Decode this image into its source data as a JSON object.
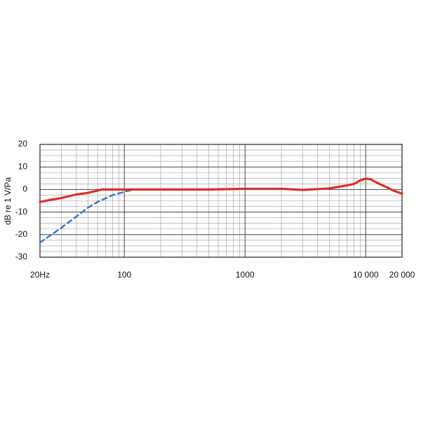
{
  "chart_data": {
    "type": "line",
    "log_x": true,
    "y_label": "dB re 1 V/Pa",
    "xlim": [
      20,
      20000
    ],
    "xticks": [
      {
        "value": 20,
        "label": "20Hz"
      },
      100,
      1000,
      {
        "value": 10000,
        "label": "10 000"
      },
      {
        "value": 20000,
        "label": "20 000"
      }
    ],
    "xminorticks": [
      30,
      40,
      50,
      60,
      70,
      80,
      90,
      200,
      300,
      400,
      500,
      600,
      700,
      800,
      900,
      2000,
      3000,
      4000,
      5000,
      6000,
      7000,
      8000,
      9000
    ],
    "ylim": [
      -30,
      20
    ],
    "yticks": [
      20,
      10,
      0,
      -10,
      -20,
      -30
    ],
    "yminorticks": [
      17.5,
      15,
      12.5,
      7.5,
      5,
      2.5,
      -2.5,
      -5,
      -7.5,
      -12.5,
      -15,
      -17.5,
      -22.5,
      -25,
      -27.5
    ],
    "grid": true,
    "series": [
      {
        "color": "#d9302a",
        "dash": false,
        "x": [
          20,
          25,
          30,
          40,
          50,
          60,
          65,
          80,
          100,
          200,
          300,
          500,
          1000,
          2000,
          3000,
          5000,
          7000,
          8000,
          9000,
          10000,
          11000,
          13000,
          15000,
          17000,
          20000
        ],
        "values": [
          -5.5,
          -4.5,
          -3.8,
          -2.2,
          -1.5,
          -0.5,
          0,
          0,
          0,
          0,
          0,
          0,
          0.3,
          0.3,
          -0.2,
          0.5,
          1.8,
          2.5,
          4,
          4.8,
          4.5,
          2.5,
          1,
          -0.5,
          -1.8
        ]
      },
      {
        "color": "#3a78c0",
        "dash": true,
        "x": [
          20,
          30,
          40,
          50,
          60,
          80,
          100,
          120
        ],
        "values": [
          -23.5,
          -17,
          -12,
          -8,
          -5.5,
          -2.5,
          -1,
          0
        ]
      }
    ]
  }
}
